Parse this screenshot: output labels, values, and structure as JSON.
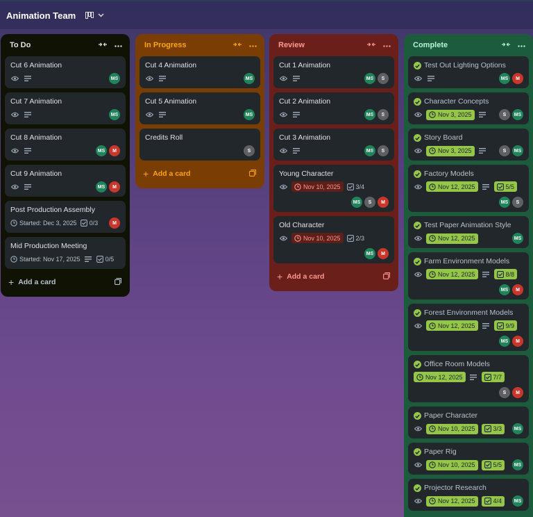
{
  "board": {
    "title": "Animation Team"
  },
  "lists": [
    {
      "key": "todo",
      "title": "To Do",
      "bg": "#101204",
      "header_color": "#dfe1e6",
      "add_color": "#b6c2cf",
      "add_label": "Add a card",
      "cards": [
        {
          "title": "Cut 6 Animation",
          "watch": true,
          "desc": true,
          "members": [
            "MS"
          ]
        },
        {
          "title": "Cut 7 Animation",
          "watch": true,
          "desc": true,
          "members": [
            "MS"
          ]
        },
        {
          "title": "Cut 8 Animation",
          "watch": true,
          "desc": true,
          "members": [
            "MS",
            "M"
          ]
        },
        {
          "title": "Cut 9 Animation",
          "watch": true,
          "desc": true,
          "members": [
            "MS",
            "M"
          ]
        },
        {
          "title": "Post Production Assembly",
          "started": "Started: Dec 3, 2025",
          "checklist": "0/3",
          "members": [
            "M"
          ]
        },
        {
          "title": "Mid Production Meeting",
          "started": "Started: Nov 17, 2025",
          "desc": true,
          "checklist": "0/5",
          "members": []
        }
      ]
    },
    {
      "key": "inprogress",
      "title": "In Progress",
      "bg": "#7a3d03",
      "header_color": "#fca700",
      "add_color": "#fca700",
      "add_label": "Add a card",
      "cards": [
        {
          "title": "Cut 4 Animation",
          "watch": true,
          "desc": true,
          "members": [
            "MS"
          ]
        },
        {
          "title": "Cut 5 Animation",
          "watch": true,
          "desc": true,
          "members": [
            "MS"
          ]
        },
        {
          "title": "Credits Roll",
          "members": [
            "S"
          ]
        }
      ]
    },
    {
      "key": "review",
      "title": "Review",
      "bg": "#6b1f1a",
      "header_color": "#fd9891",
      "add_color": "#fd9891",
      "add_label": "Add a card",
      "cards": [
        {
          "title": "Cut 1 Animation",
          "watch": true,
          "desc": true,
          "members": [
            "MS",
            "S"
          ]
        },
        {
          "title": "Cut 2 Animation",
          "watch": true,
          "desc": true,
          "members": [
            "MS",
            "S"
          ]
        },
        {
          "title": "Cut 3 Animation",
          "watch": true,
          "desc": true,
          "members": [
            "MS",
            "S"
          ]
        },
        {
          "title": "Young Character",
          "watch": true,
          "due_red": "Nov 10, 2025",
          "checklist": "3/4",
          "members": [
            "MS",
            "S",
            "M"
          ],
          "members_row": true
        },
        {
          "title": "Old Character",
          "watch": true,
          "due_red": "Nov 10, 2025",
          "checklist": "2/3",
          "members": [
            "MS",
            "M"
          ],
          "members_row": true
        }
      ]
    },
    {
      "key": "complete",
      "title": "Complete",
      "bg": "#1c5b3c",
      "header_color": "#baf3db",
      "add_color": "#baf3db",
      "add_label": "Add a card",
      "cards": [
        {
          "title": "Test Out Lighting Options",
          "done": true,
          "watch": true,
          "desc": true,
          "members": [
            "MS",
            "M"
          ]
        },
        {
          "title": "Character Concepts",
          "done": true,
          "watch": true,
          "due_green": "Nov 3, 2025",
          "desc": true,
          "members": [
            "S",
            "MS"
          ]
        },
        {
          "title": "Story Board",
          "done": true,
          "watch": true,
          "due_green": "Nov 3, 2025",
          "desc": true,
          "members": [
            "S",
            "MS"
          ]
        },
        {
          "title": "Factory Models",
          "done": true,
          "watch": true,
          "due_green": "Nov 12, 2025",
          "desc": true,
          "checklist_green": "5/5",
          "members": [
            "MS",
            "S"
          ],
          "members_row": true
        },
        {
          "title": "Test Paper Animation Style",
          "done": true,
          "watch": true,
          "due_green": "Nov 12, 2025",
          "members": [
            "MS"
          ]
        },
        {
          "title": "Farm Environment Models",
          "done": true,
          "watch": true,
          "due_green": "Nov 12, 2025",
          "desc": true,
          "checklist_green": "8/8",
          "members": [
            "MS",
            "M"
          ],
          "members_row": true
        },
        {
          "title": "Forest Environment Models",
          "done": true,
          "watch": true,
          "due_green": "Nov 12, 2025",
          "desc": true,
          "checklist_green": "9/9",
          "members": [
            "MS",
            "M"
          ],
          "members_row": true
        },
        {
          "title": "Office Room Models",
          "done": true,
          "due_green": "Nov 12, 2025",
          "desc": true,
          "checklist_green": "7/7",
          "members": [
            "S",
            "M"
          ],
          "members_row": true
        },
        {
          "title": "Paper Character",
          "done": true,
          "watch": true,
          "due_green": "Nov 10, 2025",
          "checklist_green": "3/3",
          "members": [
            "MS"
          ]
        },
        {
          "title": "Paper Rig",
          "done": true,
          "watch": true,
          "due_green": "Nov 10, 2025",
          "checklist_green": "5/5",
          "members": [
            "MS"
          ]
        },
        {
          "title": "Projector Research",
          "done": true,
          "watch": true,
          "due_green": "Nov 12, 2025",
          "checklist_green": "4/4",
          "members": [
            "MS"
          ]
        }
      ]
    }
  ]
}
